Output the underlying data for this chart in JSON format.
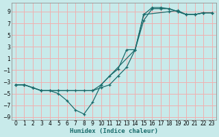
{
  "xlabel": "Humidex (Indice chaleur)",
  "bg_color": "#c8eaea",
  "grid_color": "#f0b0b0",
  "line_color": "#1a6b6b",
  "xlim": [
    0,
    23
  ],
  "ylim": [
    -9.5,
    10.5
  ],
  "yticks": [
    -9,
    -7,
    -5,
    -3,
    -1,
    1,
    3,
    5,
    7,
    9
  ],
  "xticks": [
    0,
    1,
    2,
    3,
    4,
    5,
    6,
    7,
    8,
    9,
    10,
    11,
    12,
    13,
    14,
    15,
    16,
    17,
    18,
    19,
    20,
    21,
    22,
    23
  ],
  "line1_x": [
    0,
    1,
    2,
    3,
    4,
    5,
    6,
    7,
    8,
    9,
    10,
    11,
    12,
    13,
    14,
    15,
    16,
    17,
    18,
    19,
    20,
    21,
    22,
    23
  ],
  "line1_y": [
    -3.5,
    -3.5,
    -4.0,
    -4.5,
    -4.5,
    -5.0,
    -6.2,
    -7.8,
    -8.5,
    -6.5,
    -3.5,
    -2.0,
    -0.8,
    2.5,
    2.5,
    8.5,
    9.7,
    9.7,
    9.5,
    9.0,
    8.5,
    8.5,
    8.8,
    8.8
  ],
  "line2_x": [
    0,
    1,
    2,
    3,
    4,
    5,
    6,
    7,
    8,
    9,
    10,
    11,
    12,
    13,
    14,
    15,
    16,
    17,
    18,
    19,
    20,
    21,
    22,
    23
  ],
  "line2_y": [
    -3.5,
    -3.5,
    -4.0,
    -4.5,
    -4.5,
    -4.5,
    -4.5,
    -4.5,
    -4.5,
    -4.5,
    -4.0,
    -3.5,
    -2.0,
    -0.5,
    2.5,
    7.5,
    9.5,
    9.5,
    9.5,
    9.0,
    8.5,
    8.5,
    8.8,
    8.8
  ],
  "line3_x": [
    0,
    1,
    2,
    3,
    5,
    9,
    10,
    14,
    15,
    18,
    19,
    20,
    21,
    22,
    23
  ],
  "line3_y": [
    -3.5,
    -3.5,
    -4.0,
    -4.5,
    -4.5,
    -4.5,
    -3.5,
    2.5,
    8.5,
    9.0,
    9.2,
    8.5,
    8.5,
    8.8,
    8.8
  ]
}
